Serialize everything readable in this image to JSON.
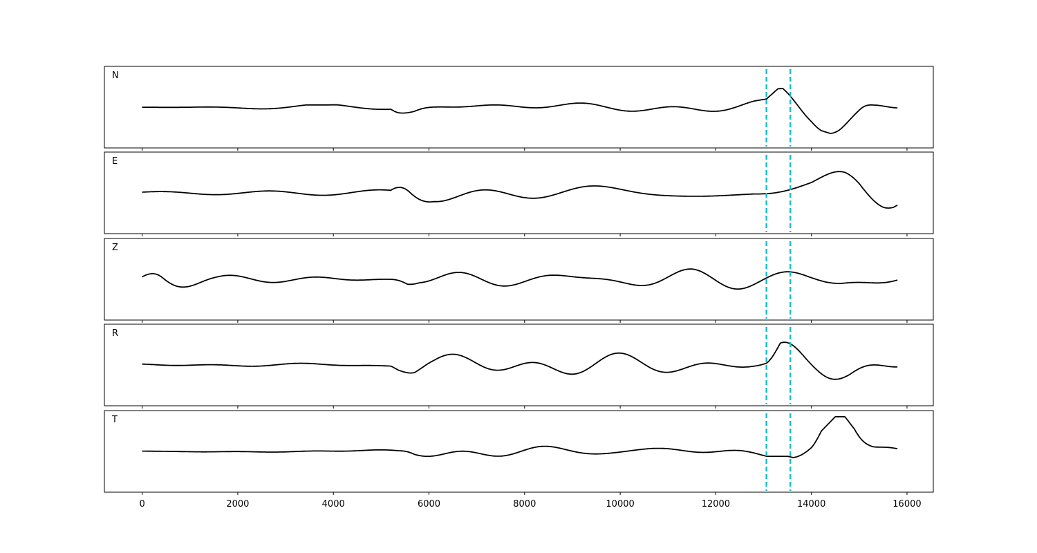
{
  "chart_data": {
    "type": "line",
    "xlim": [
      -790,
      16550
    ],
    "x_ticks": [
      0,
      2000,
      4000,
      6000,
      8000,
      10000,
      12000,
      14000,
      16000
    ],
    "x_tick_labels": [
      "0",
      "2000",
      "4000",
      "6000",
      "8000",
      "10000",
      "12000",
      "14000",
      "16000"
    ],
    "x_start": 0,
    "x_end": 15800,
    "line_color": "#000000",
    "marker_color": "#17becf",
    "markers": [
      13060,
      13560
    ],
    "grid": false,
    "panels": [
      {
        "label": "N",
        "ylim": [
          -1.0,
          1.0
        ],
        "envelope": [
          {
            "x": 0,
            "a": 0.04
          },
          {
            "x": 5200,
            "a": 0.06
          },
          {
            "x": 5350,
            "a": 0.2
          },
          {
            "x": 5700,
            "a": 0.42
          },
          {
            "x": 6100,
            "a": 0.3
          },
          {
            "x": 9000,
            "a": 0.22
          },
          {
            "x": 12800,
            "a": 0.15
          },
          {
            "x": 13060,
            "a": 0.2
          },
          {
            "x": 13300,
            "a": 0.45
          },
          {
            "x": 14000,
            "a": 0.5
          },
          {
            "x": 14600,
            "a": 0.72
          },
          {
            "x": 15000,
            "a": 0.8
          },
          {
            "x": 15300,
            "a": 0.4
          },
          {
            "x": 15800,
            "a": 0.2
          }
        ]
      },
      {
        "label": "E",
        "ylim": [
          -1.0,
          1.0
        ],
        "envelope": [
          {
            "x": 0,
            "a": 0.05
          },
          {
            "x": 5200,
            "a": 0.08
          },
          {
            "x": 5350,
            "a": 0.25
          },
          {
            "x": 5600,
            "a": 0.55
          },
          {
            "x": 6100,
            "a": 0.35
          },
          {
            "x": 9000,
            "a": 0.3
          },
          {
            "x": 12800,
            "a": 0.25
          },
          {
            "x": 13300,
            "a": 0.55
          },
          {
            "x": 14000,
            "a": 0.5
          },
          {
            "x": 14700,
            "a": 0.72
          },
          {
            "x": 15000,
            "a": 0.75
          },
          {
            "x": 15500,
            "a": 0.5
          },
          {
            "x": 15800,
            "a": 0.3
          }
        ]
      },
      {
        "label": "Z",
        "ylim": [
          -1.0,
          1.0
        ],
        "envelope": [
          {
            "x": 0,
            "a": 0.06
          },
          {
            "x": 400,
            "a": 0.28
          },
          {
            "x": 900,
            "a": 0.2
          },
          {
            "x": 1500,
            "a": 0.12
          },
          {
            "x": 5200,
            "a": 0.15
          },
          {
            "x": 5550,
            "a": 0.88
          },
          {
            "x": 5800,
            "a": 0.5
          },
          {
            "x": 8000,
            "a": 0.35
          },
          {
            "x": 11500,
            "a": 0.3
          },
          {
            "x": 13000,
            "a": 0.22
          },
          {
            "x": 14000,
            "a": 0.25
          },
          {
            "x": 14600,
            "a": 0.35
          },
          {
            "x": 15800,
            "a": 0.2
          }
        ]
      },
      {
        "label": "R",
        "ylim": [
          -1.0,
          1.0
        ],
        "envelope": [
          {
            "x": 0,
            "a": 0.04
          },
          {
            "x": 5200,
            "a": 0.08
          },
          {
            "x": 5350,
            "a": 0.3
          },
          {
            "x": 5700,
            "a": 0.6
          },
          {
            "x": 6100,
            "a": 0.42
          },
          {
            "x": 9000,
            "a": 0.35
          },
          {
            "x": 12800,
            "a": 0.15
          },
          {
            "x": 13060,
            "a": 0.2
          },
          {
            "x": 13350,
            "a": 0.85
          },
          {
            "x": 14000,
            "a": 0.6
          },
          {
            "x": 14800,
            "a": 0.65
          },
          {
            "x": 15300,
            "a": 0.5
          },
          {
            "x": 15800,
            "a": 0.35
          }
        ]
      },
      {
        "label": "T",
        "ylim": [
          -1.0,
          1.0
        ],
        "envelope": [
          {
            "x": 0,
            "a": 0.03
          },
          {
            "x": 5400,
            "a": 0.05
          },
          {
            "x": 5700,
            "a": 0.2
          },
          {
            "x": 6200,
            "a": 0.2
          },
          {
            "x": 8400,
            "a": 0.18
          },
          {
            "x": 12800,
            "a": 0.12
          },
          {
            "x": 13500,
            "a": 0.12
          },
          {
            "x": 14000,
            "a": 0.25
          },
          {
            "x": 14500,
            "a": 0.85
          },
          {
            "x": 14900,
            "a": 0.85
          },
          {
            "x": 15300,
            "a": 0.4
          },
          {
            "x": 15800,
            "a": 0.15
          }
        ]
      }
    ]
  }
}
